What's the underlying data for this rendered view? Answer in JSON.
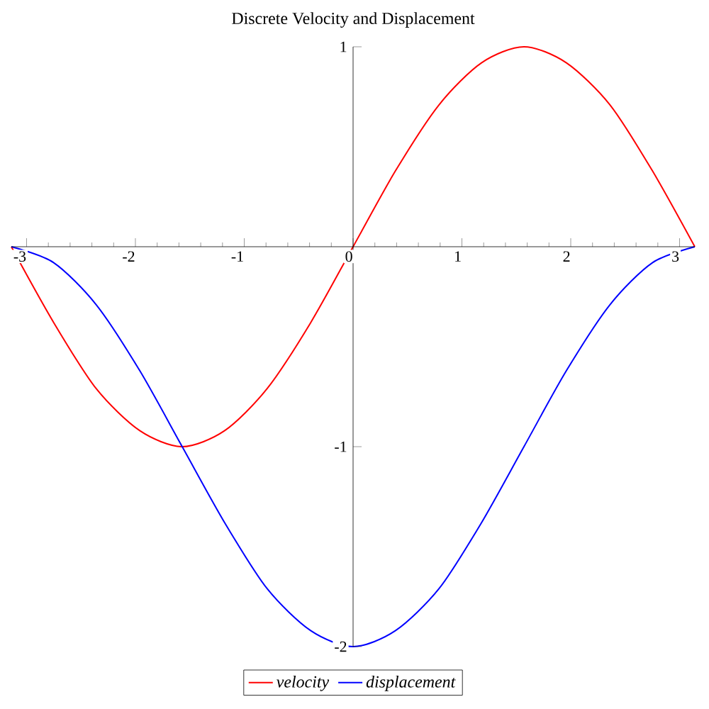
{
  "chart_data": {
    "type": "line",
    "title": "Discrete Velocity and Displacement",
    "x": [
      -3.14,
      -2.75,
      -2.36,
      -1.96,
      -1.57,
      -1.18,
      -0.79,
      -0.39,
      0,
      0.39,
      0.79,
      1.18,
      1.57,
      1.96,
      2.36,
      2.75,
      3.14
    ],
    "series": [
      {
        "name": "velocity",
        "color": "#ff0000",
        "values": [
          0,
          -0.38,
          -0.71,
          -0.92,
          -1,
          -0.92,
          -0.71,
          -0.38,
          0,
          0.38,
          0.71,
          0.92,
          1,
          0.92,
          0.71,
          0.38,
          0
        ]
      },
      {
        "name": "displacement",
        "color": "#0000ff",
        "values": [
          0,
          -0.08,
          -0.29,
          -0.62,
          -1,
          -1.38,
          -1.71,
          -1.92,
          -2,
          -1.92,
          -1.71,
          -1.38,
          -1,
          -0.62,
          -0.29,
          -0.08,
          0
        ]
      }
    ],
    "xlim": [
      -3.14,
      3.14
    ],
    "ylim": [
      -2,
      1
    ],
    "xticks": [
      -3,
      -2,
      -1,
      0,
      1,
      2,
      3
    ],
    "yticks": [
      -2,
      -1,
      1
    ],
    "legend": "bottom"
  }
}
